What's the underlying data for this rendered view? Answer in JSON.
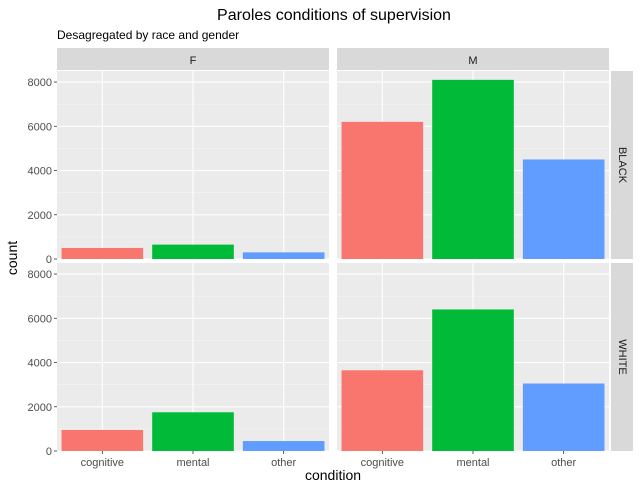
{
  "chart_data": {
    "type": "bar",
    "title": "Paroles conditions of supervision",
    "subtitle": "Desagregated by race and gender",
    "xlabel": "condition",
    "ylabel": "count",
    "categories": [
      "cognitive",
      "mental",
      "other"
    ],
    "column_facets": [
      "F",
      "M"
    ],
    "row_facets": [
      "BLACK",
      "WHITE"
    ],
    "ylim": [
      0,
      8500
    ],
    "yticks": [
      0,
      2000,
      4000,
      6000,
      8000
    ],
    "ytick_labels": [
      "0",
      "2000",
      "4000",
      "6000",
      "8000"
    ],
    "colors": [
      "#F8766D",
      "#00BA38",
      "#619CFF"
    ],
    "grid": true,
    "panels": [
      {
        "gender": "F",
        "race": "BLACK",
        "values": [
          500,
          650,
          300
        ]
      },
      {
        "gender": "M",
        "race": "BLACK",
        "values": [
          6200,
          8100,
          4500
        ]
      },
      {
        "gender": "F",
        "race": "WHITE",
        "values": [
          950,
          1750,
          450
        ]
      },
      {
        "gender": "M",
        "race": "WHITE",
        "values": [
          3650,
          6400,
          3050
        ]
      }
    ]
  }
}
